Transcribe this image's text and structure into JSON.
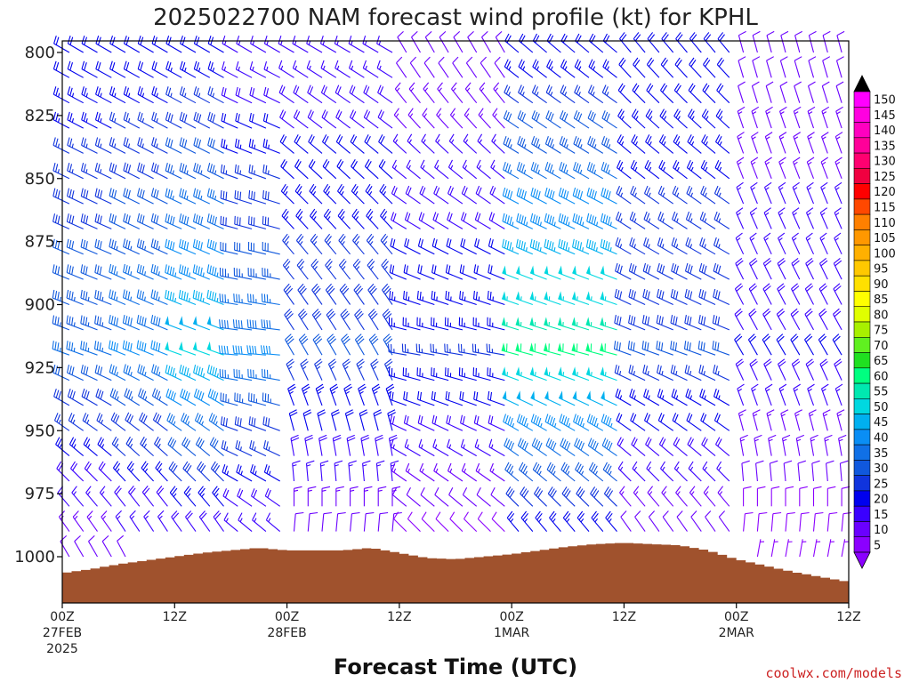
{
  "chart_data": {
    "type": "wind-barb-profile",
    "title": "2025022700 NAM forecast wind profile (kt) for KPHL",
    "xlabel": "Forecast Time (UTC)",
    "ylabel": "",
    "credit": "coolwx.com/models",
    "x_unit": "hours since 2025-02-27 00Z",
    "xlim": [
      0,
      84
    ],
    "ylim": [
      1015,
      795
    ],
    "y_ticks": [
      800,
      825,
      850,
      875,
      900,
      925,
      950,
      975,
      1000
    ],
    "x_ticks": [
      {
        "hour": 0,
        "label": "00Z",
        "sub": "27FEB",
        "sub2": "2025"
      },
      {
        "hour": 12,
        "label": "12Z",
        "sub": "",
        "sub2": ""
      },
      {
        "hour": 24,
        "label": "00Z",
        "sub": "28FEB",
        "sub2": ""
      },
      {
        "hour": 36,
        "label": "12Z",
        "sub": "",
        "sub2": ""
      },
      {
        "hour": 48,
        "label": "00Z",
        "sub": "1MAR",
        "sub2": ""
      },
      {
        "hour": 60,
        "label": "12Z",
        "sub": "",
        "sub2": ""
      },
      {
        "hour": 72,
        "label": "00Z",
        "sub": "2MAR",
        "sub2": ""
      },
      {
        "hour": 84,
        "label": "12Z",
        "sub": "",
        "sub2": ""
      }
    ],
    "barb_hour_step": 1.5,
    "barb_pressure_step": 10,
    "barb_pressure_range": [
      800,
      1010
    ],
    "surface_pressure": {
      "hours": [
        0,
        3,
        6,
        9,
        12,
        15,
        18,
        21,
        24,
        27,
        30,
        33,
        36,
        39,
        42,
        45,
        48,
        51,
        54,
        57,
        60,
        63,
        66,
        69,
        72,
        75,
        78,
        81,
        84
      ],
      "pressure": [
        1006.5,
        1005,
        1003,
        1001.5,
        1000,
        998.5,
        997.5,
        996.5,
        997.5,
        997.5,
        997.5,
        996.5,
        998.5,
        1000.5,
        1001,
        1000,
        999,
        997.5,
        996,
        995,
        994.5,
        995,
        995.5,
        997.5,
        1001,
        1003.5,
        1006,
        1008,
        1010
      ]
    },
    "wind_segments": [
      {
        "hours": [
          0,
          6
        ],
        "speed_low": 35,
        "speed_high": 20,
        "dir_low": 290,
        "dir_high": 300
      },
      {
        "hours": [
          6,
          12
        ],
        "speed_low": 40,
        "speed_high": 20,
        "dir_low": 292,
        "dir_high": 300
      },
      {
        "hours": [
          12,
          18
        ],
        "speed_low": 50,
        "speed_high": 20,
        "dir_low": 290,
        "dir_high": 300
      },
      {
        "hours": [
          18,
          24
        ],
        "speed_low": 40,
        "speed_high": 15,
        "dir_low": 275,
        "dir_high": 300
      },
      {
        "hours": [
          24,
          36
        ],
        "speed_low": 30,
        "speed_high": 15,
        "dir_low": 330,
        "dir_high": 300
      },
      {
        "hours": [
          36,
          48
        ],
        "speed_low": 25,
        "speed_high": 10,
        "dir_low": 280,
        "dir_high": 330
      },
      {
        "hours": [
          48,
          60
        ],
        "speed_low": 60,
        "speed_high": 20,
        "dir_low": 285,
        "dir_high": 310
      },
      {
        "hours": [
          60,
          72
        ],
        "speed_low": 30,
        "speed_high": 20,
        "dir_low": 290,
        "dir_high": 320
      },
      {
        "hours": [
          72,
          84
        ],
        "speed_low": 20,
        "speed_high": 10,
        "dir_low": 330,
        "dir_high": 345
      }
    ],
    "colorbar": {
      "levels": [
        5,
        10,
        15,
        20,
        25,
        30,
        35,
        40,
        45,
        50,
        55,
        60,
        65,
        70,
        75,
        80,
        85,
        90,
        95,
        100,
        105,
        110,
        115,
        120,
        125,
        130,
        135,
        140,
        145,
        150
      ],
      "colors": [
        "#8b00ff",
        "#6a00ff",
        "#3a00ff",
        "#0000ee",
        "#1034dd",
        "#1058dd",
        "#1070e6",
        "#0a8ef5",
        "#00b0f0",
        "#00d8e0",
        "#00e8b0",
        "#00ff80",
        "#20e020",
        "#60f020",
        "#a8f000",
        "#e0ff00",
        "#ffff00",
        "#ffe000",
        "#ffc800",
        "#ffb000",
        "#ff9800",
        "#ff8000",
        "#ff4800",
        "#ff0000",
        "#f00040",
        "#ff0070",
        "#ff0099",
        "#ff00c0",
        "#ff00e0",
        "#ff00ff"
      ],
      "over_color": "#000000",
      "under_color": "#8b00ff"
    },
    "terrain_color": "#a0522d",
    "grid": false
  }
}
